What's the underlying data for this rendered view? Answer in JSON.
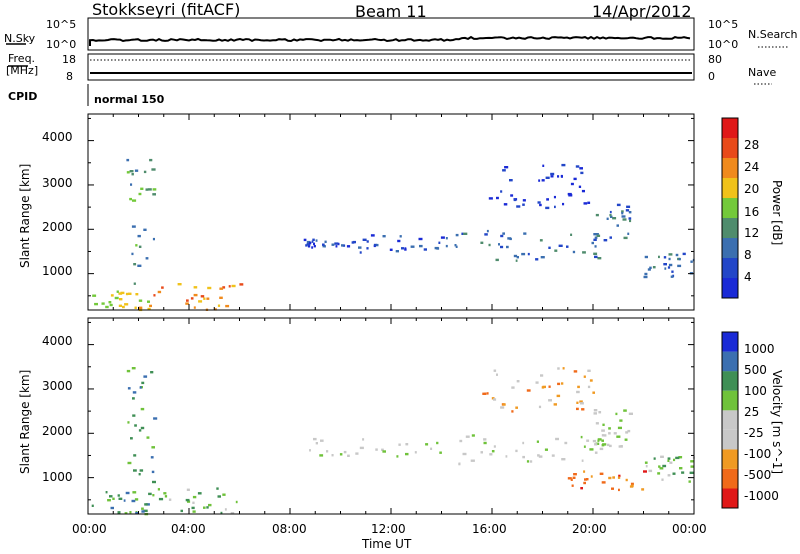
{
  "header": {
    "station": "Stokkseyri (fitACF)",
    "beam": "Beam 11",
    "date": "14/Apr/2012"
  },
  "noise_panel": {
    "left_label": "N.Sky",
    "right_label": "N.Search",
    "left_ticks": [
      "10^5",
      "10^0"
    ],
    "right_ticks": [
      "10^5",
      "10^0"
    ]
  },
  "freq_panel": {
    "left_label_1": "Freq.",
    "left_label_2": "[MHz]",
    "right_label": "Nave",
    "left_ticks": [
      "18",
      "8"
    ],
    "right_ticks": [
      "80",
      "0"
    ]
  },
  "cpid_panel": {
    "label": "CPID",
    "value": "normal 150"
  },
  "colors": {
    "power": [
      "#1a2ad6",
      "#2246c8",
      "#3b6fb0",
      "#4f8c6d",
      "#73c93a",
      "#f0c21a",
      "#f08a1c",
      "#e84a1a",
      "#e01818"
    ],
    "velocity": [
      "#1a2ad6",
      "#3b6fb0",
      "#3f8f55",
      "#6fc23a",
      "#c8c8c8",
      "#c8c8c8",
      "#f09a22",
      "#f06a1a",
      "#e01818"
    ],
    "ground_scatter": "#c8c8c8"
  },
  "chart_data": [
    {
      "type": "heatmap",
      "name": "power",
      "xlabel": "",
      "ylabel": "Slant Range [km]",
      "xlim": [
        "00:00",
        "24:00"
      ],
      "ylim": [
        180,
        4600
      ],
      "y_ticks": [
        "1000",
        "2000",
        "3000",
        "4000"
      ],
      "x_ticks": [
        "00:00",
        "04:00",
        "08:00",
        "12:00",
        "16:00",
        "20:00",
        "00:00"
      ],
      "colorbar": {
        "label": "Power [dB]",
        "ticks": [
          "4",
          "8",
          "12",
          "16",
          "20",
          "24",
          "28"
        ]
      },
      "echo_regions": [
        {
          "time_h": [
            0.0,
            2.5
          ],
          "range_km": [
            200,
            700
          ],
          "level": 5
        },
        {
          "time_h": [
            2.5,
            6.0
          ],
          "range_km": [
            200,
            800
          ],
          "level": 6
        },
        {
          "time_h": [
            1.5,
            2.6
          ],
          "range_km": [
            800,
            3600
          ],
          "level": 3
        },
        {
          "time_h": [
            8.5,
            10.5
          ],
          "range_km": [
            1600,
            1800
          ],
          "level": 1
        },
        {
          "time_h": [
            10.5,
            14.0
          ],
          "range_km": [
            1500,
            1900
          ],
          "level": 1
        },
        {
          "time_h": [
            14.0,
            20.5
          ],
          "range_km": [
            1300,
            2000
          ],
          "level": 2
        },
        {
          "time_h": [
            15.5,
            20.0
          ],
          "range_km": [
            2500,
            3500
          ],
          "level": 0
        },
        {
          "time_h": [
            20.0,
            21.5
          ],
          "range_km": [
            1700,
            2600
          ],
          "level": 2
        },
        {
          "time_h": [
            22.0,
            24.0
          ],
          "range_km": [
            900,
            1500
          ],
          "level": 2
        }
      ]
    },
    {
      "type": "heatmap",
      "name": "velocity",
      "xlabel": "Time UT",
      "ylabel": "Slant Range [km]",
      "xlim": [
        "00:00",
        "24:00"
      ],
      "ylim": [
        180,
        4600
      ],
      "y_ticks": [
        "1000",
        "2000",
        "3000",
        "4000"
      ],
      "x_ticks": [
        "00:00",
        "04:00",
        "08:00",
        "12:00",
        "16:00",
        "20:00",
        "00:00"
      ],
      "colorbar": {
        "label": "Velocity [m s^-1]",
        "ticks": [
          "1000",
          "500",
          "100",
          "25",
          "-25",
          "-100",
          "-500",
          "-1000"
        ]
      },
      "echo_regions": [
        {
          "time_h": [
            0.0,
            2.5
          ],
          "range_km": [
            200,
            700
          ],
          "level": 2
        },
        {
          "time_h": [
            2.5,
            6.0
          ],
          "range_km": [
            200,
            800
          ],
          "level": 3
        },
        {
          "time_h": [
            1.5,
            2.6
          ],
          "range_km": [
            800,
            3600
          ],
          "level": 2
        },
        {
          "time_h": [
            8.5,
            14.0
          ],
          "range_km": [
            1500,
            1900
          ],
          "level": 4
        },
        {
          "time_h": [
            14.0,
            20.5
          ],
          "range_km": [
            1300,
            2000
          ],
          "level": 4
        },
        {
          "time_h": [
            15.5,
            20.0
          ],
          "range_km": [
            2500,
            3500
          ],
          "level": 6
        },
        {
          "time_h": [
            20.0,
            21.5
          ],
          "range_km": [
            1700,
            2600
          ],
          "level": 4
        },
        {
          "time_h": [
            19.0,
            22.0
          ],
          "range_km": [
            700,
            1200
          ],
          "level": 7
        },
        {
          "time_h": [
            22.0,
            24.0
          ],
          "range_km": [
            900,
            1500
          ],
          "level": 3
        }
      ]
    }
  ]
}
